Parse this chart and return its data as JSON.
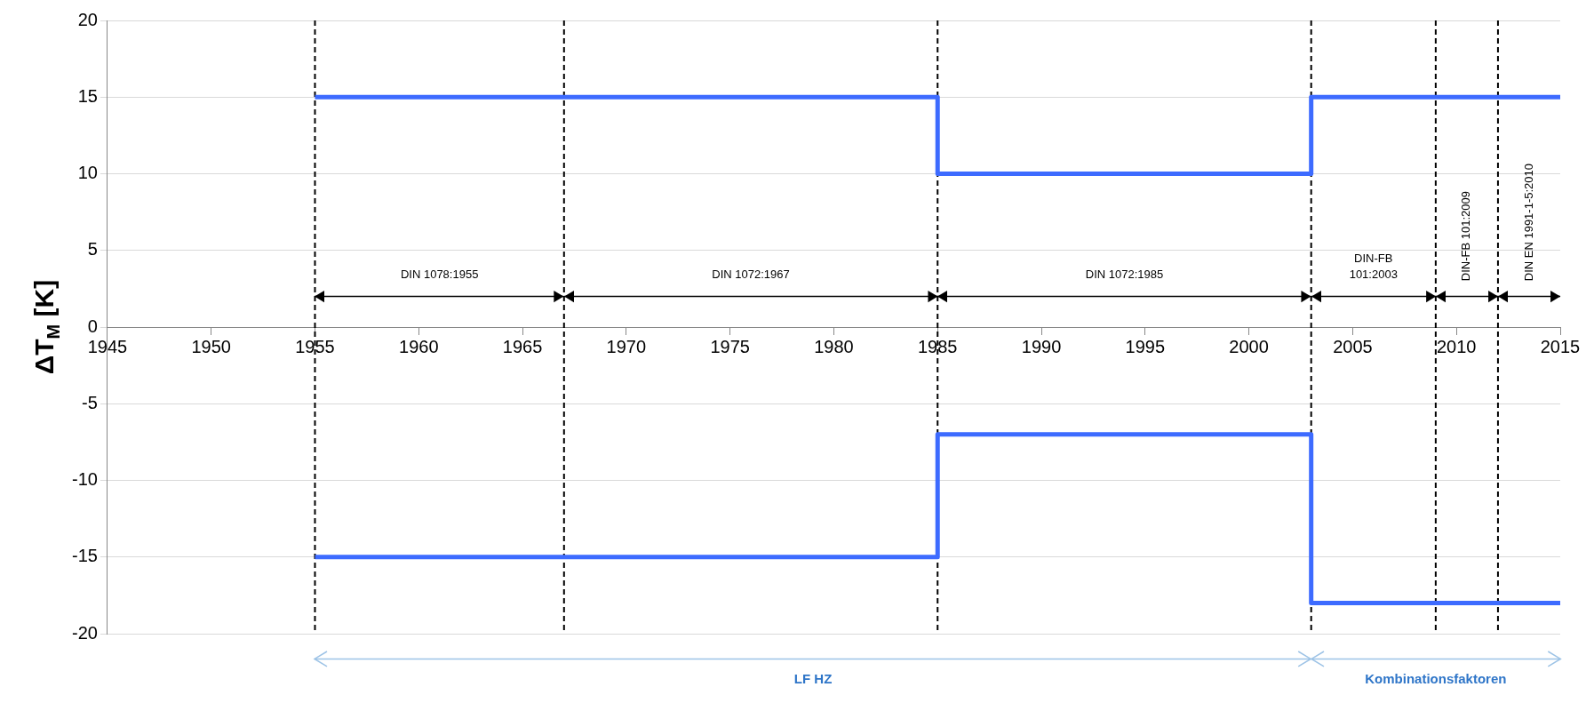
{
  "chart_data": {
    "type": "step",
    "ylabel": "ΔT$_{M}$ [K]",
    "xlim": [
      1945,
      2015
    ],
    "xticks": [
      1945,
      1950,
      1955,
      1960,
      1965,
      1970,
      1975,
      1980,
      1985,
      1990,
      1995,
      2000,
      2005,
      2010,
      2015
    ],
    "ylim": [
      -20,
      20
    ],
    "yticks": [
      -20,
      -15,
      -10,
      -5,
      0,
      5,
      10,
      15,
      20
    ],
    "grid": "y",
    "legend": false,
    "series": [
      {
        "color": "#3d6bff",
        "x": [
          1955,
          1985,
          2003,
          2015
        ],
        "values": [
          15,
          10,
          15,
          15
        ]
      },
      {
        "color": "#3d6bff",
        "x": [
          1955,
          1985,
          2003,
          2015
        ],
        "values": [
          -15,
          -7,
          -18,
          -18
        ]
      }
    ],
    "ref_lines": [
      {
        "axis": "x",
        "value": 1955,
        "color": "#000000",
        "line_style": "dashed"
      },
      {
        "axis": "x",
        "value": 1967,
        "color": "#000000",
        "line_style": "dashed"
      },
      {
        "axis": "x",
        "value": 1985,
        "color": "#000000",
        "line_style": "dashed"
      },
      {
        "axis": "x",
        "value": 2003,
        "color": "#000000",
        "line_style": "dashed"
      },
      {
        "axis": "x",
        "value": 2009,
        "color": "#000000",
        "line_style": "dashed"
      },
      {
        "axis": "x",
        "value": 2012,
        "color": "#000000",
        "line_style": "dashed"
      }
    ],
    "annotations": [
      "DIN 1078:1955",
      "DIN 1072:1967",
      "DIN 1072:1985",
      "DIN-FB 101:2003",
      "DIN-FB 101:2009",
      "DIN EN 1991-1-5:2010",
      "LF HZ",
      "Kombinationsfaktoren"
    ]
  }
}
